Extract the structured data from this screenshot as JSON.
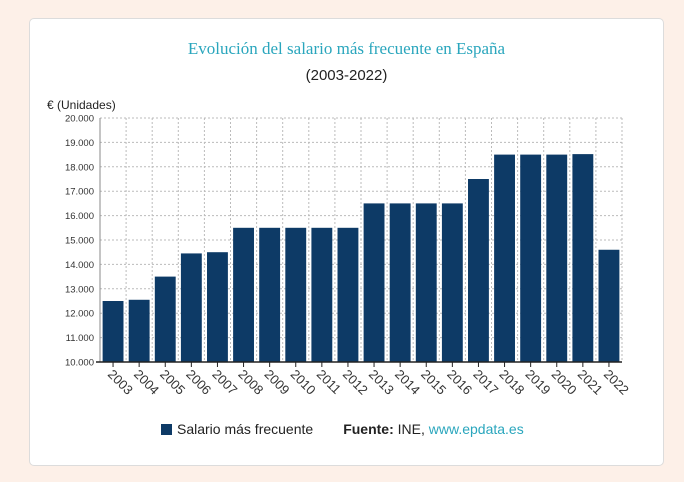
{
  "title": "Evolución del salario más frecuente en España",
  "subtitle": "(2003-2022)",
  "source": {
    "label": "Fuente:",
    "org": " INE, ",
    "link": "www.epdata.es"
  },
  "colors": {
    "bar": "#0d3a66",
    "title": "#2aa6bd",
    "link": "#2aa6bd",
    "grid": "#bbbbbb",
    "background": "#fdf0e8"
  },
  "chart_data": {
    "type": "bar",
    "ylabel": "€ (Unidades)",
    "ylim": [
      10000,
      20000
    ],
    "yticks": [
      "10.000",
      "11.000",
      "12.000",
      "13.000",
      "14.000",
      "15.000",
      "16.000",
      "17.000",
      "18.000",
      "19.000",
      "20.000"
    ],
    "grid": true,
    "legend_position": "bottom",
    "categories": [
      "2003",
      "2004",
      "2005",
      "2006",
      "2007",
      "2008",
      "2009",
      "2010",
      "2011",
      "2012",
      "2013",
      "2014",
      "2015",
      "2016",
      "2017",
      "2018",
      "2019",
      "2020",
      "2021",
      "2022"
    ],
    "series": [
      {
        "name": "Salario más frecuente",
        "values": [
          12500,
          12550,
          13500,
          14450,
          14500,
          15500,
          15500,
          15500,
          15500,
          15500,
          16500,
          16500,
          16500,
          16500,
          17500,
          18500,
          18500,
          18500,
          18520,
          14600
        ]
      }
    ]
  }
}
